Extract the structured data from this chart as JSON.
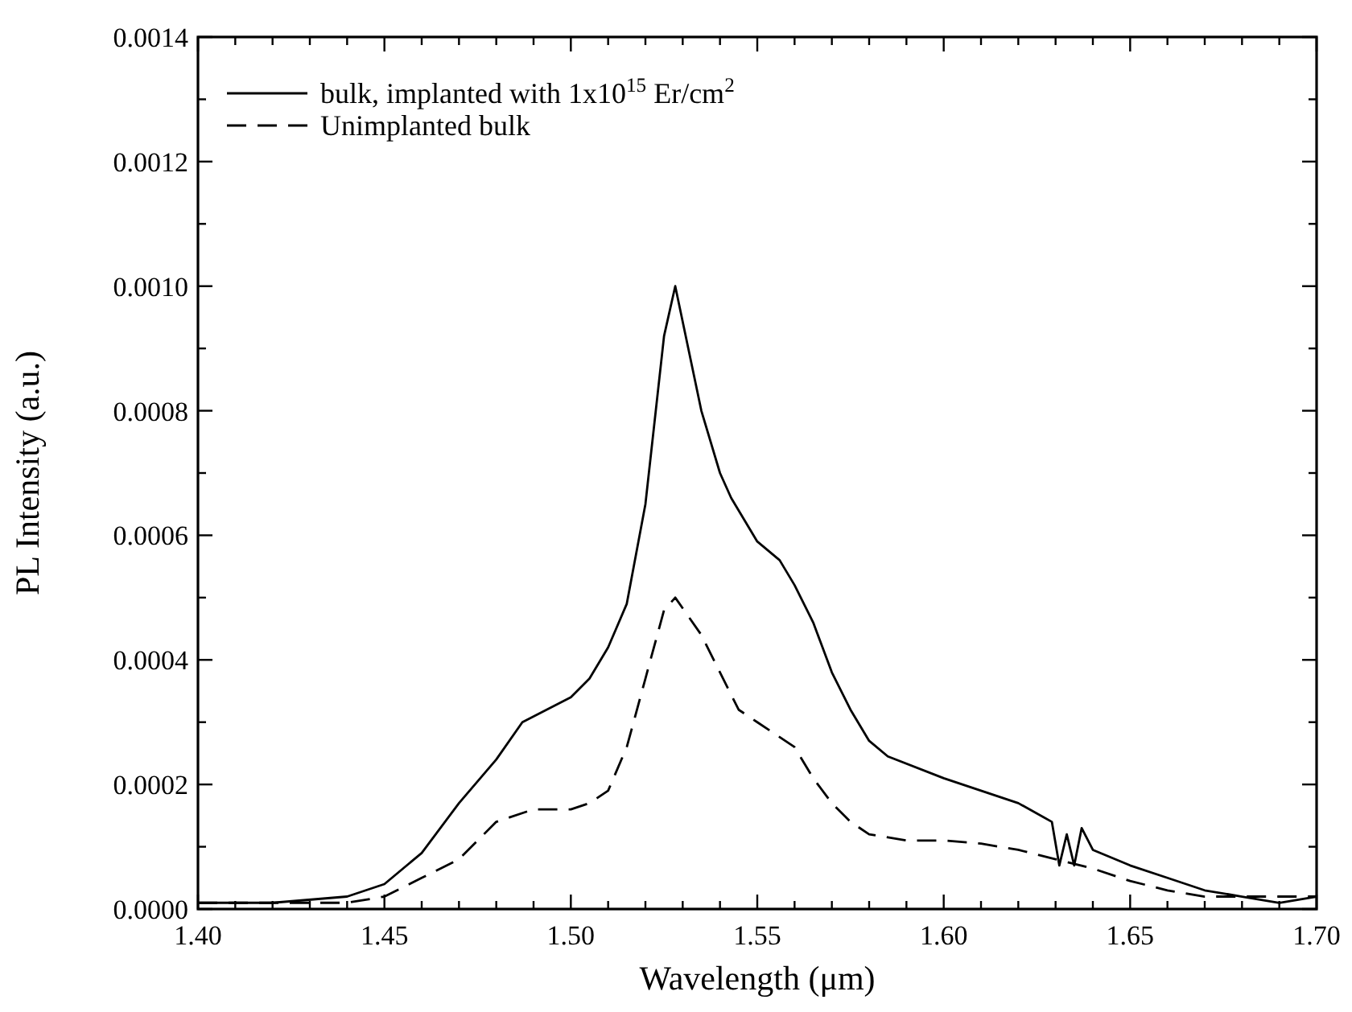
{
  "chart_data": {
    "type": "line",
    "xlabel": "Wavelength (μm)",
    "ylabel": "PL Intensity (a.u.)",
    "xlim": [
      1.4,
      1.7
    ],
    "ylim": [
      0,
      0.0014
    ],
    "xticks": [
      {
        "value": 1.4,
        "label": "1.40"
      },
      {
        "value": 1.41,
        "label": null
      },
      {
        "value": 1.42,
        "label": null
      },
      {
        "value": 1.43,
        "label": null
      },
      {
        "value": 1.44,
        "label": null
      },
      {
        "value": 1.45,
        "label": "1.45"
      },
      {
        "value": 1.46,
        "label": null
      },
      {
        "value": 1.47,
        "label": null
      },
      {
        "value": 1.48,
        "label": null
      },
      {
        "value": 1.49,
        "label": null
      },
      {
        "value": 1.5,
        "label": "1.50"
      },
      {
        "value": 1.51,
        "label": null
      },
      {
        "value": 1.52,
        "label": null
      },
      {
        "value": 1.53,
        "label": null
      },
      {
        "value": 1.54,
        "label": null
      },
      {
        "value": 1.55,
        "label": "1.55"
      },
      {
        "value": 1.56,
        "label": null
      },
      {
        "value": 1.57,
        "label": null
      },
      {
        "value": 1.58,
        "label": null
      },
      {
        "value": 1.59,
        "label": null
      },
      {
        "value": 1.6,
        "label": "1.60"
      },
      {
        "value": 1.61,
        "label": null
      },
      {
        "value": 1.62,
        "label": null
      },
      {
        "value": 1.63,
        "label": null
      },
      {
        "value": 1.64,
        "label": null
      },
      {
        "value": 1.65,
        "label": "1.65"
      },
      {
        "value": 1.66,
        "label": null
      },
      {
        "value": 1.67,
        "label": null
      },
      {
        "value": 1.68,
        "label": null
      },
      {
        "value": 1.69,
        "label": null
      },
      {
        "value": 1.7,
        "label": "1.70"
      }
    ],
    "yticks": [
      {
        "value": 0,
        "label": "0.0000"
      },
      {
        "value": 0.0001,
        "label": null
      },
      {
        "value": 0.0002,
        "label": "0.0002"
      },
      {
        "value": 0.0003,
        "label": null
      },
      {
        "value": 0.0004,
        "label": "0.0004"
      },
      {
        "value": 0.0005,
        "label": null
      },
      {
        "value": 0.0006,
        "label": "0.0006"
      },
      {
        "value": 0.0007,
        "label": null
      },
      {
        "value": 0.0008,
        "label": "0.0008"
      },
      {
        "value": 0.0009,
        "label": null
      },
      {
        "value": 0.001,
        "label": "0.0010"
      },
      {
        "value": 0.0011,
        "label": null
      },
      {
        "value": 0.0012,
        "label": "0.0012"
      },
      {
        "value": 0.0013,
        "label": null
      },
      {
        "value": 0.0014,
        "label": "0.0014"
      }
    ],
    "grid": false,
    "legend": "top left",
    "series": [
      {
        "name": "bulk, implanted with 1x10$^{15}$ Er/cm$^{2}$",
        "color": "#000000",
        "line_style": "solid",
        "x": [
          1.4,
          1.42,
          1.44,
          1.45,
          1.46,
          1.47,
          1.48,
          1.487,
          1.5,
          1.505,
          1.51,
          1.515,
          1.52,
          1.525,
          1.528,
          1.535,
          1.54,
          1.543,
          1.55,
          1.556,
          1.56,
          1.565,
          1.57,
          1.575,
          1.58,
          1.585,
          1.6,
          1.61,
          1.62,
          1.629,
          1.631,
          1.633,
          1.635,
          1.637,
          1.64,
          1.65,
          1.66,
          1.67,
          1.68,
          1.69,
          1.7
        ],
        "values": [
          1e-05,
          1e-05,
          2e-05,
          4e-05,
          9e-05,
          0.00017,
          0.00024,
          0.0003,
          0.00034,
          0.00037,
          0.00042,
          0.00049,
          0.00065,
          0.00092,
          0.001,
          0.0008,
          0.0007,
          0.00066,
          0.00059,
          0.00056,
          0.00052,
          0.00046,
          0.00038,
          0.00032,
          0.00027,
          0.000245,
          0.00021,
          0.00019,
          0.00017,
          0.00014,
          7e-05,
          0.00012,
          7e-05,
          0.00013,
          9.5e-05,
          7e-05,
          5e-05,
          3e-05,
          2e-05,
          1e-05,
          2e-05
        ]
      },
      {
        "name": "Unimplanted bulk",
        "color": "#000000",
        "line_style": "dashed",
        "x": [
          1.4,
          1.42,
          1.44,
          1.45,
          1.46,
          1.47,
          1.48,
          1.49,
          1.5,
          1.505,
          1.51,
          1.515,
          1.52,
          1.525,
          1.528,
          1.535,
          1.54,
          1.545,
          1.55,
          1.555,
          1.56,
          1.565,
          1.57,
          1.575,
          1.58,
          1.59,
          1.6,
          1.61,
          1.62,
          1.63,
          1.64,
          1.65,
          1.66,
          1.67,
          1.68,
          1.7
        ],
        "values": [
          1e-05,
          1e-05,
          1e-05,
          2e-05,
          5e-05,
          8e-05,
          0.00014,
          0.00016,
          0.00016,
          0.00017,
          0.00019,
          0.00026,
          0.00037,
          0.00048,
          0.0005,
          0.00044,
          0.00038,
          0.00032,
          0.0003,
          0.00028,
          0.00026,
          0.00021,
          0.00017,
          0.00014,
          0.00012,
          0.00011,
          0.00011,
          0.000105,
          9.5e-05,
          8e-05,
          6.5e-05,
          4.5e-05,
          3e-05,
          2e-05,
          2e-05,
          2e-05
        ]
      }
    ]
  }
}
